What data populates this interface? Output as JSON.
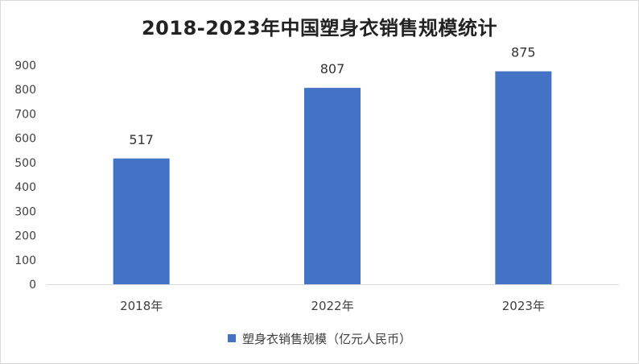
{
  "chart_data": {
    "type": "bar",
    "title": "2018-2023年中国塑身衣销售规模统计",
    "categories": [
      "2018年",
      "2022年",
      "2023年"
    ],
    "series": [
      {
        "name": "塑身衣销售规模（亿元人民币）",
        "values": [
          517,
          807,
          875
        ],
        "color": "#4472c4"
      }
    ],
    "ylim": [
      0,
      900
    ],
    "yticks": [
      0,
      100,
      200,
      300,
      400,
      500,
      600,
      700,
      800,
      900
    ],
    "ytick_labels": [
      "0",
      "100",
      "200",
      "300",
      "400",
      "500",
      "600",
      "700",
      "800",
      "900"
    ],
    "data_labels": [
      "517",
      "807",
      "875"
    ],
    "grid": false,
    "legend_position": "bottom"
  }
}
